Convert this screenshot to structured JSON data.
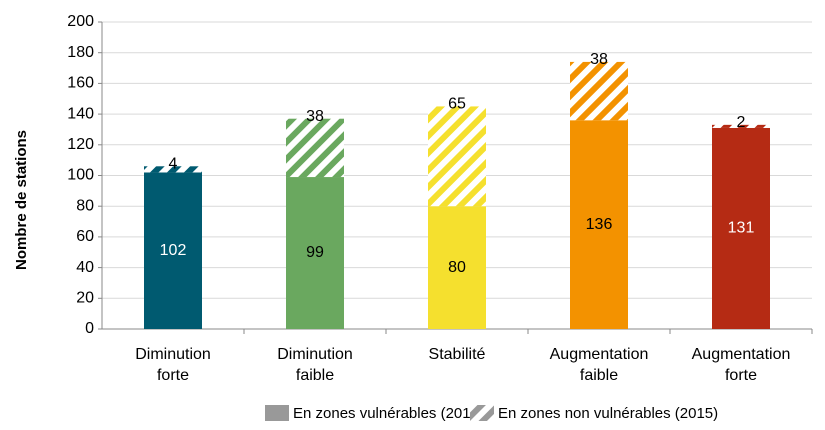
{
  "chart_data": {
    "type": "stacked_bar",
    "ylabel": "Nombre de stations",
    "categories": [
      "Diminution forte",
      "Diminution faible",
      "Stabilité",
      "Augmentation faible",
      "Augmentation forte"
    ],
    "colors": [
      "#005a70",
      "#6aa85f",
      "#f5e02e",
      "#f39200",
      "#b52b14"
    ],
    "series": [
      {
        "name": "En zones vulnérables (2015)",
        "color": "#999999",
        "values": [
          102,
          99,
          80,
          136,
          131
        ]
      },
      {
        "name": "En zones non vulnérables (2015)",
        "color": "#999999",
        "values": [
          4,
          38,
          65,
          38,
          2
        ]
      }
    ],
    "ylim": [
      0,
      200
    ],
    "yticks": [
      0,
      20,
      40,
      60,
      80,
      100,
      120,
      140,
      160,
      180,
      200
    ],
    "grid": true
  }
}
